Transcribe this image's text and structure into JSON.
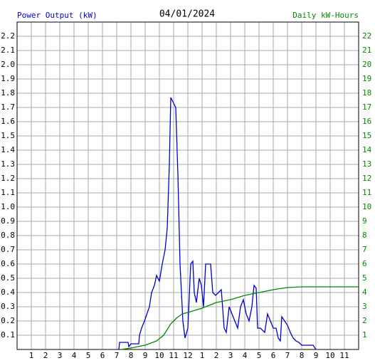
{
  "chart_data": {
    "type": "line",
    "title": "04/01/2024",
    "y_label": "Power Output (kW)",
    "y2_label": "Daily kW-Hours",
    "xlim": [
      0,
      24
    ],
    "xticks": [
      1,
      2,
      3,
      4,
      5,
      6,
      7,
      8,
      9,
      10,
      11,
      12,
      {
        "value": 13,
        "label": "1"
      },
      {
        "value": 14,
        "label": "2"
      },
      {
        "value": 15,
        "label": "3"
      },
      {
        "value": 16,
        "label": "4"
      },
      {
        "value": 17,
        "label": "5"
      },
      {
        "value": 18,
        "label": "6"
      },
      {
        "value": 19,
        "label": "7"
      },
      {
        "value": 20,
        "label": "8"
      },
      {
        "value": 21,
        "label": "9"
      },
      {
        "value": 22,
        "label": "10"
      },
      {
        "value": 23,
        "label": "11"
      }
    ],
    "ylim": [
      0,
      2.3
    ],
    "yticks": [
      0.1,
      0.2,
      0.3,
      0.4,
      0.5,
      0.6,
      0.7,
      0.8,
      0.9,
      {
        "value": 1,
        "label": "1.0"
      },
      1.1,
      1.2,
      1.3,
      1.4,
      1.5,
      1.6,
      1.7,
      1.8,
      1.9,
      {
        "value": 2,
        "label": "2.0"
      },
      2.1,
      2.2
    ],
    "y2lim": [
      0,
      23
    ],
    "y2ticks": [
      1,
      2,
      3,
      4,
      5,
      6,
      7,
      8,
      9,
      10,
      11,
      12,
      13,
      14,
      15,
      16,
      17,
      18,
      19,
      20,
      21,
      22
    ],
    "grid": true,
    "series": [
      {
        "name": "Power Output (kW)",
        "color": "#0000cc",
        "x": [
          7.15,
          7.2,
          7.8,
          7.85,
          8.0,
          8.55,
          8.6,
          8.75,
          8.95,
          9.3,
          9.45,
          9.65,
          9.8,
          10.0,
          10.2,
          10.4,
          10.55,
          10.7,
          10.8,
          11.0,
          11.15,
          11.3,
          11.45,
          11.65,
          11.8,
          12.0,
          12.2,
          12.35,
          12.45,
          12.6,
          12.8,
          12.95,
          13.1,
          13.25,
          13.6,
          13.75,
          13.95,
          14.15,
          14.35,
          14.55,
          14.7,
          14.9,
          15.1,
          15.3,
          15.5,
          15.7,
          15.9,
          16.1,
          16.3,
          16.5,
          16.65,
          16.8,
          16.9,
          17.1,
          17.4,
          17.6,
          17.8,
          18.0,
          18.2,
          18.35,
          18.5,
          18.6,
          18.8,
          19.0,
          19.2,
          19.4,
          19.6,
          19.8,
          20.0,
          20.8,
          21.0
        ],
        "values": [
          0,
          0.05,
          0.05,
          0.02,
          0.04,
          0.04,
          0.1,
          0.15,
          0.2,
          0.3,
          0.4,
          0.45,
          0.52,
          0.48,
          0.6,
          0.7,
          0.85,
          1.3,
          1.77,
          1.73,
          1.7,
          1.23,
          0.6,
          0.2,
          0.08,
          0.15,
          0.6,
          0.62,
          0.4,
          0.33,
          0.5,
          0.45,
          0.3,
          0.6,
          0.6,
          0.4,
          0.38,
          0.4,
          0.42,
          0.15,
          0.12,
          0.3,
          0.25,
          0.2,
          0.15,
          0.3,
          0.35,
          0.25,
          0.2,
          0.3,
          0.45,
          0.43,
          0.15,
          0.15,
          0.12,
          0.25,
          0.2,
          0.15,
          0.15,
          0.08,
          0.06,
          0.23,
          0.2,
          0.17,
          0.12,
          0.08,
          0.06,
          0.05,
          0.03,
          0.03,
          0
        ]
      },
      {
        "name": "Daily kW-Hours",
        "color": "#008800",
        "axis": "y2",
        "x": [
          7.3,
          8.0,
          9.0,
          9.8,
          10.3,
          10.8,
          11.2,
          11.6,
          12.0,
          13.0,
          14.0,
          15.0,
          16.0,
          17.0,
          18.0,
          19.0,
          20.0,
          24.0
        ],
        "values": [
          0,
          0.1,
          0.3,
          0.6,
          1.0,
          1.8,
          2.2,
          2.5,
          2.6,
          2.9,
          3.3,
          3.5,
          3.8,
          4.0,
          4.2,
          4.35,
          4.4,
          4.4
        ]
      }
    ]
  }
}
